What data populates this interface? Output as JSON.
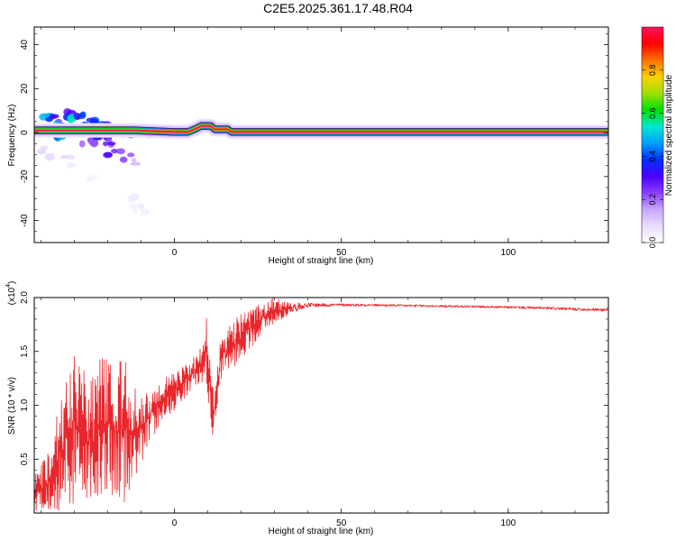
{
  "figure": {
    "title": "C2E5.2025.361.17.48.R04"
  },
  "chart_data": [
    {
      "type": "heatmap",
      "xlabel": "Height of straight line (km)",
      "ylabel": "Frequency (Hz)",
      "xlim": [
        -42,
        130
      ],
      "ylim": [
        -50,
        48
      ],
      "x_ticks": [
        0,
        50,
        100
      ],
      "y_ticks": [
        -40,
        -20,
        0,
        20,
        40
      ],
      "colorbar": {
        "label": "Normalized spectral amplitude",
        "range": [
          0,
          1
        ],
        "ticks": [
          0.0,
          0.2,
          0.4,
          0.6,
          0.8
        ],
        "colormap": [
          "#ffffff",
          "#e9dcff",
          "#c7a6ff",
          "#8a3dff",
          "#4b00ff",
          "#0030ff",
          "#00a0ff",
          "#00e8d0",
          "#00e000",
          "#a0e000",
          "#ffd000",
          "#ff7000",
          "#ff0000",
          "#ff1060"
        ]
      },
      "main_line": [
        {
          "x": -42,
          "f": 1.0
        },
        {
          "x": -30,
          "f": 1.0
        },
        {
          "x": -20,
          "f": 1.0
        },
        {
          "x": -12,
          "f": 1.0
        },
        {
          "x": -4,
          "f": 0.5
        },
        {
          "x": 0,
          "f": 0.3
        },
        {
          "x": 4,
          "f": 0.3
        },
        {
          "x": 6,
          "f": 1.5
        },
        {
          "x": 8,
          "f": 3.0
        },
        {
          "x": 11,
          "f": 3.0
        },
        {
          "x": 12,
          "f": 1.5
        },
        {
          "x": 16,
          "f": 1.5
        },
        {
          "x": 17,
          "f": 0.3
        },
        {
          "x": 20,
          "f": 0.3
        },
        {
          "x": 24,
          "f": 0.3
        },
        {
          "x": 40,
          "f": 0.3
        },
        {
          "x": 70,
          "f": 0.3
        },
        {
          "x": 100,
          "f": 0.3
        },
        {
          "x": 130,
          "f": 0.3
        }
      ],
      "scatter_clusters": [
        {
          "x": -38,
          "f": 8,
          "amp": 0.45
        },
        {
          "x": -36,
          "f": 6,
          "amp": 0.35
        },
        {
          "x": -35,
          "f": 3,
          "amp": 0.45
        },
        {
          "x": -34,
          "f": -2,
          "amp": 0.55
        },
        {
          "x": -32,
          "f": 8,
          "amp": 0.4
        },
        {
          "x": -30,
          "f": 6,
          "amp": 0.5
        },
        {
          "x": -28,
          "f": 7,
          "amp": 0.4
        },
        {
          "x": -27,
          "f": 2,
          "amp": 0.4
        },
        {
          "x": -26,
          "f": -4,
          "amp": 0.3
        },
        {
          "x": -24,
          "f": 5,
          "amp": 0.45
        },
        {
          "x": -23,
          "f": 0,
          "amp": 0.5
        },
        {
          "x": -22,
          "f": -3,
          "amp": 0.35
        },
        {
          "x": -21,
          "f": 3,
          "amp": 0.4
        },
        {
          "x": -20,
          "f": -5,
          "amp": 0.3
        },
        {
          "x": -19,
          "f": 2,
          "amp": 0.35
        },
        {
          "x": -18,
          "f": -9,
          "amp": 0.25
        },
        {
          "x": -16,
          "f": 1,
          "amp": 0.4
        },
        {
          "x": -15,
          "f": -11,
          "amp": 0.2
        },
        {
          "x": -14,
          "f": 0,
          "amp": 0.45
        },
        {
          "x": -13,
          "f": -13,
          "amp": 0.15
        },
        {
          "x": -11,
          "f": 1,
          "amp": 0.35
        },
        {
          "x": -9,
          "f": 0,
          "amp": 0.3
        },
        {
          "x": -40,
          "f": -8,
          "amp": 0.1
        },
        {
          "x": -37,
          "f": -12,
          "amp": 0.08
        },
        {
          "x": -33,
          "f": -10,
          "amp": 0.08
        },
        {
          "x": -30,
          "f": -16,
          "amp": 0.06
        },
        {
          "x": -12,
          "f": -30,
          "amp": 0.05
        },
        {
          "x": -11,
          "f": -33,
          "amp": 0.05
        },
        {
          "x": -10,
          "f": -37,
          "amp": 0.04
        },
        {
          "x": -25,
          "f": -20,
          "amp": 0.04
        }
      ]
    },
    {
      "type": "line",
      "xlabel": "Height of straight line (km)",
      "ylabel": "SNR (10 * v/v)",
      "y_multiplier": "(x10",
      "y_multiplier_exp": "4",
      "y_multiplier_close": ")",
      "xlim": [
        -42,
        130
      ],
      "ylim": [
        0,
        2.0
      ],
      "x_ticks": [
        0,
        50,
        100
      ],
      "y_ticks": [
        0.5,
        1.0,
        1.5,
        2.0
      ],
      "y_tick_labels": [
        "0.5",
        "1.0",
        "1.5",
        "2.0"
      ],
      "series": [
        {
          "color": "#e8262b",
          "envelope": [
            {
              "x": -42,
              "lo": 0.02,
              "hi": 0.35
            },
            {
              "x": -38,
              "lo": 0.02,
              "hi": 0.55
            },
            {
              "x": -34,
              "lo": 0.03,
              "hi": 1.2
            },
            {
              "x": -30,
              "lo": 0.05,
              "hi": 1.55
            },
            {
              "x": -26,
              "lo": 0.1,
              "hi": 1.3
            },
            {
              "x": -22,
              "lo": 0.05,
              "hi": 1.45
            },
            {
              "x": -18,
              "lo": 0.08,
              "hi": 1.5
            },
            {
              "x": -15,
              "lo": 0.1,
              "hi": 1.45
            },
            {
              "x": -12,
              "lo": 0.3,
              "hi": 1.2
            },
            {
              "x": -8,
              "lo": 0.6,
              "hi": 1.15
            },
            {
              "x": -4,
              "lo": 0.85,
              "hi": 1.25
            },
            {
              "x": 0,
              "lo": 0.95,
              "hi": 1.3
            },
            {
              "x": 4,
              "lo": 1.1,
              "hi": 1.4
            },
            {
              "x": 8,
              "lo": 1.2,
              "hi": 1.55
            },
            {
              "x": 10,
              "lo": 1.1,
              "hi": 1.9
            },
            {
              "x": 11,
              "lo": 0.7,
              "hi": 1.2
            },
            {
              "x": 12,
              "lo": 0.72,
              "hi": 1.15
            },
            {
              "x": 14,
              "lo": 1.25,
              "hi": 1.65
            },
            {
              "x": 18,
              "lo": 1.35,
              "hi": 1.8
            },
            {
              "x": 22,
              "lo": 1.5,
              "hi": 1.9
            },
            {
              "x": 26,
              "lo": 1.65,
              "hi": 1.97
            },
            {
              "x": 30,
              "lo": 1.75,
              "hi": 2.0
            },
            {
              "x": 35,
              "lo": 1.86,
              "hi": 1.95
            },
            {
              "x": 40,
              "lo": 1.91,
              "hi": 1.95
            },
            {
              "x": 50,
              "lo": 1.92,
              "hi": 1.945
            },
            {
              "x": 60,
              "lo": 1.92,
              "hi": 1.94
            },
            {
              "x": 70,
              "lo": 1.915,
              "hi": 1.935
            },
            {
              "x": 80,
              "lo": 1.91,
              "hi": 1.93
            },
            {
              "x": 90,
              "lo": 1.905,
              "hi": 1.925
            },
            {
              "x": 100,
              "lo": 1.9,
              "hi": 1.92
            },
            {
              "x": 110,
              "lo": 1.89,
              "hi": 1.915
            },
            {
              "x": 120,
              "lo": 1.88,
              "hi": 1.905
            },
            {
              "x": 130,
              "lo": 1.87,
              "hi": 1.9
            }
          ]
        }
      ]
    }
  ]
}
